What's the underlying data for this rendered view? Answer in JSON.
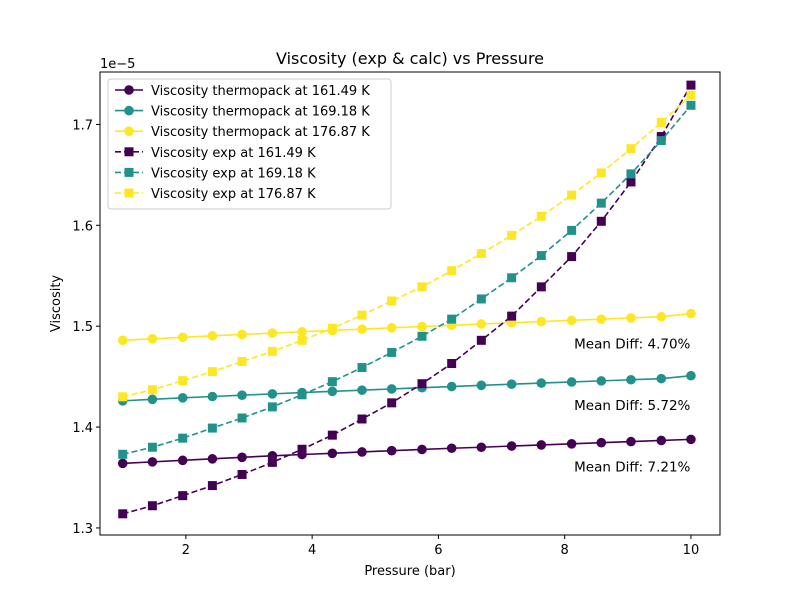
{
  "chart_data": {
    "type": "line",
    "title": "Viscosity (exp & calc) vs Pressure",
    "xlabel": "Pressure (bar)",
    "ylabel": "Viscosity",
    "y_offset_label": "1e−5",
    "xlim": [
      0.64,
      10.46
    ],
    "ylim": [
      1.293e-05,
      1.752e-05
    ],
    "xticks": [
      2,
      4,
      6,
      8,
      10
    ],
    "xtick_labels": [
      "2",
      "4",
      "6",
      "8",
      "10"
    ],
    "yticks": [
      1.3e-05,
      1.4e-05,
      1.5e-05,
      1.6e-05,
      1.7e-05
    ],
    "ytick_labels": [
      "1.3",
      "1.4",
      "1.5",
      "1.6",
      "1.7"
    ],
    "grid": false,
    "legend_position": "top-left",
    "x": [
      1.0,
      1.47,
      1.95,
      2.42,
      2.89,
      3.37,
      3.84,
      4.32,
      4.79,
      5.26,
      5.74,
      6.21,
      6.68,
      7.16,
      7.63,
      8.11,
      8.58,
      9.05,
      9.53,
      10.0
    ],
    "series": [
      {
        "name": "Viscosity thermopack at 161.49 K",
        "color": "#440154",
        "marker": "circle",
        "linestyle": "solid",
        "values": [
          1.364e-05,
          1.3655e-05,
          1.367e-05,
          1.3685e-05,
          1.37e-05,
          1.3715e-05,
          1.3728e-05,
          1.374e-05,
          1.3753e-05,
          1.3766e-05,
          1.3778e-05,
          1.379e-05,
          1.38e-05,
          1.3812e-05,
          1.3823e-05,
          1.3834e-05,
          1.3845e-05,
          1.3856e-05,
          1.3867e-05,
          1.3878e-05
        ]
      },
      {
        "name": "Viscosity thermopack at 169.18 K",
        "color": "#21918c",
        "marker": "circle",
        "linestyle": "solid",
        "values": [
          1.426e-05,
          1.4275e-05,
          1.429e-05,
          1.4303e-05,
          1.4316e-05,
          1.4329e-05,
          1.4342e-05,
          1.4354e-05,
          1.4366e-05,
          1.4378e-05,
          1.439e-05,
          1.4402e-05,
          1.4414e-05,
          1.4425e-05,
          1.4436e-05,
          1.4447e-05,
          1.4458e-05,
          1.4469e-05,
          1.448e-05,
          1.4509e-05
        ]
      },
      {
        "name": "Viscosity thermopack at 176.87 K",
        "color": "#fde725",
        "marker": "circle",
        "linestyle": "solid",
        "values": [
          1.486e-05,
          1.4875e-05,
          1.489e-05,
          1.4905e-05,
          1.4918e-05,
          1.4932e-05,
          1.4945e-05,
          1.4958e-05,
          1.4971e-05,
          1.4984e-05,
          1.4997e-05,
          1.5009e-05,
          1.5022e-05,
          1.5034e-05,
          1.5046e-05,
          1.5058e-05,
          1.507e-05,
          1.5082e-05,
          1.5094e-05,
          1.5125e-05
        ]
      },
      {
        "name": "Viscosity exp at 161.49 K",
        "color": "#440154",
        "marker": "square",
        "linestyle": "dashed",
        "values": [
          1.314e-05,
          1.322e-05,
          1.332e-05,
          1.342e-05,
          1.353e-05,
          1.365e-05,
          1.378e-05,
          1.392e-05,
          1.408e-05,
          1.424e-05,
          1.443e-05,
          1.463e-05,
          1.486e-05,
          1.51e-05,
          1.539e-05,
          1.569e-05,
          1.604e-05,
          1.643e-05,
          1.688e-05,
          1.739e-05
        ]
      },
      {
        "name": "Viscosity exp at 169.18 K",
        "color": "#21918c",
        "marker": "square",
        "linestyle": "dashed",
        "values": [
          1.373e-05,
          1.38e-05,
          1.389e-05,
          1.399e-05,
          1.409e-05,
          1.42e-05,
          1.432e-05,
          1.445e-05,
          1.459e-05,
          1.474e-05,
          1.49e-05,
          1.507e-05,
          1.527e-05,
          1.548e-05,
          1.57e-05,
          1.595e-05,
          1.622e-05,
          1.651e-05,
          1.684e-05,
          1.719e-05
        ]
      },
      {
        "name": "Viscosity exp at 176.87 K",
        "color": "#fde725",
        "marker": "square",
        "linestyle": "dashed",
        "values": [
          1.43e-05,
          1.437e-05,
          1.446e-05,
          1.455e-05,
          1.465e-05,
          1.475e-05,
          1.486e-05,
          1.498e-05,
          1.511e-05,
          1.525e-05,
          1.539e-05,
          1.555e-05,
          1.572e-05,
          1.59e-05,
          1.609e-05,
          1.63e-05,
          1.652e-05,
          1.676e-05,
          1.702e-05,
          1.729e-05
        ]
      }
    ],
    "annotations": [
      {
        "text": "Mean Diff: 4.70%",
        "x": 8.15,
        "y": 1.478e-05
      },
      {
        "text": "Mean Diff: 5.72%",
        "x": 8.15,
        "y": 1.417e-05
      },
      {
        "text": "Mean Diff: 7.21%",
        "x": 8.15,
        "y": 1.356e-05
      }
    ]
  }
}
